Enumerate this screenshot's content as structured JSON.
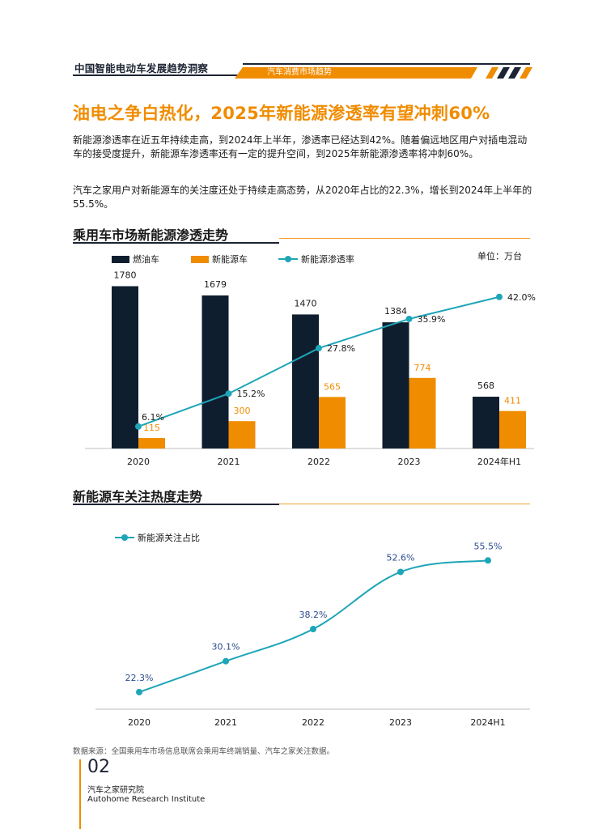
{
  "header": {
    "report_title": "中国智能电动车发展趋势洞察",
    "section_label": "汽车消费市场趋势"
  },
  "headline": "油电之争白热化，2025年新能源渗透率有望冲刺60%",
  "paragraphs": [
    "新能源渗透率在近五年持续走高，到2024年上半年，渗透率已经达到42%。随着偏远地区用户对插电混动车的接受度提升，新能源车渗透率还有一定的提升空间，到2025年新能源渗透率将冲刺60%。",
    "汽车之家用户对新能源车的关注度还处于持续走高态势，从2020年占比的22.3%，增长到2024年上半年的55.5%。"
  ],
  "colors": {
    "accent_orange": "#f08c00",
    "dark_navy": "#0f1e2e",
    "teal": "#1ea5b8"
  },
  "chart_data": [
    {
      "type": "bar",
      "title": "乘用车市场新能源渗透走势",
      "unit_label": "单位：万台",
      "categories": [
        "2020",
        "2021",
        "2022",
        "2023",
        "2024年H1"
      ],
      "series": [
        {
          "name": "燃油车",
          "kind": "bar",
          "color": "#0f1e2e",
          "values": [
            1780,
            1679,
            1470,
            1384,
            568
          ],
          "labels": [
            "1780",
            "1679",
            "1470",
            "1384",
            "568"
          ]
        },
        {
          "name": "新能源车",
          "kind": "bar",
          "color": "#f08c00",
          "values": [
            115,
            300,
            565,
            774,
            411
          ],
          "labels": [
            "115",
            "300",
            "565",
            "774",
            "411"
          ]
        },
        {
          "name": "新能源渗透率",
          "kind": "line",
          "color": "#1ea5b8",
          "values": [
            6.1,
            15.2,
            27.8,
            35.9,
            42.0
          ],
          "labels": [
            "6.1%",
            "15.2%",
            "27.8%",
            "35.9%",
            "42.0%"
          ]
        }
      ],
      "bar_ylim": [
        0,
        1900
      ],
      "line_ylim": [
        0,
        48
      ],
      "grid": false,
      "legend_position": "top-left"
    },
    {
      "type": "line",
      "title": "新能源车关注热度走势",
      "categories": [
        "2020",
        "2021",
        "2022",
        "2023",
        "2024H1"
      ],
      "series": [
        {
          "name": "新能源关注占比",
          "color": "#1ea5b8",
          "values": [
            22.3,
            30.1,
            38.2,
            52.6,
            55.5
          ],
          "labels": [
            "22.3%",
            "30.1%",
            "38.2%",
            "52.6%",
            "55.5%"
          ]
        }
      ],
      "ylim": [
        18,
        58
      ],
      "grid": false,
      "legend_position": "top-left"
    }
  ],
  "footer": {
    "source": "数据来源：全国乘用车市场信息联席会乘用车终端销量、汽车之家关注数据。",
    "page_number": "02",
    "org_cn": "汽车之家研究院",
    "org_en": "Autohome Research Institute"
  }
}
